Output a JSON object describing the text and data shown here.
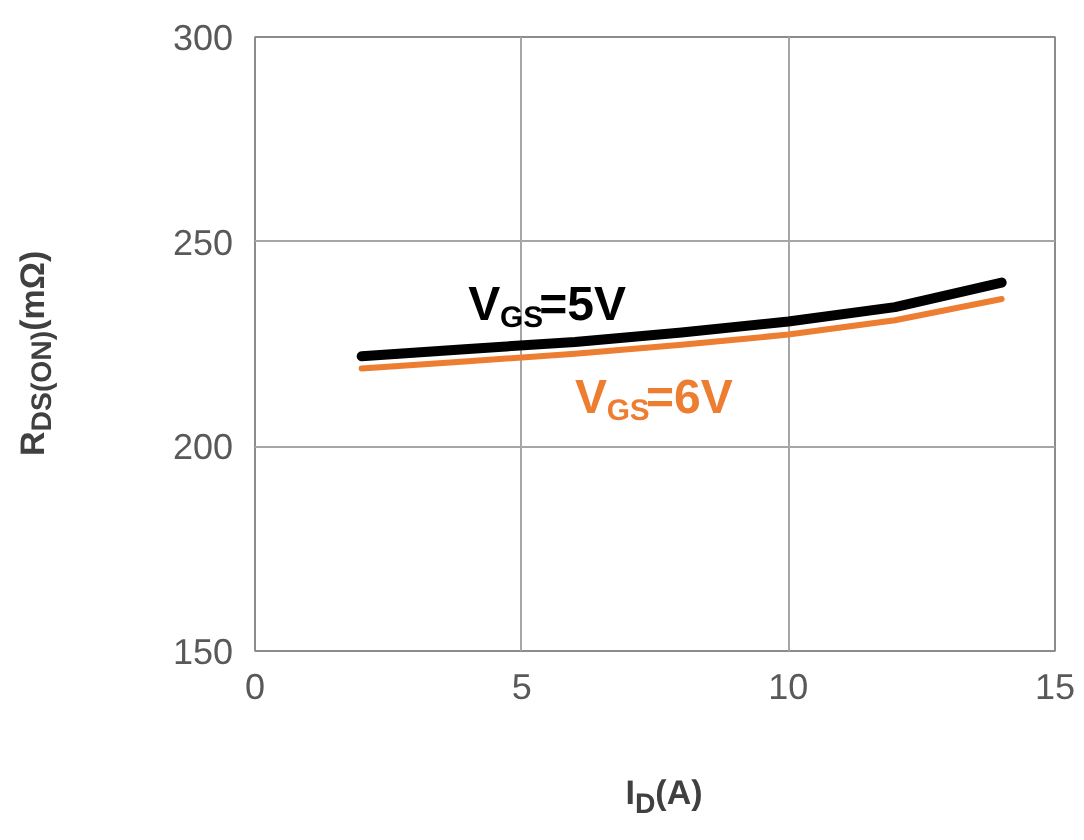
{
  "chart_data": {
    "type": "line",
    "xlabel": "I$_{D}$(A)",
    "ylabel": "R$_{DS(ON)}$(mΩ)",
    "x": [
      2,
      4,
      6,
      8,
      10,
      12,
      14
    ],
    "series": [
      {
        "name": "V$_{GS}$=5V",
        "color": "#000000",
        "values": [
          222,
          223.8,
          225.5,
          227.8,
          230.5,
          234,
          240
        ]
      },
      {
        "name": "V$_{GS}$=6V",
        "color": "#ed7d31",
        "values": [
          219,
          220.8,
          222.6,
          224.8,
          227.3,
          230.8,
          236
        ]
      }
    ],
    "xlim": [
      0,
      15
    ],
    "xticks": [
      0,
      5,
      10,
      15
    ],
    "ylim": [
      150,
      300
    ],
    "yticks": [
      150,
      200,
      250,
      300
    ],
    "grid": true,
    "marker": "none",
    "line_style": "solid"
  }
}
